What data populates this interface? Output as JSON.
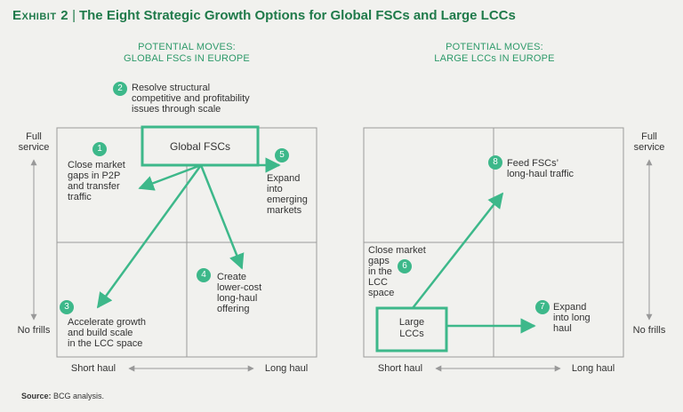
{
  "title": {
    "exhibit": "Exhibit 2",
    "separator": "|",
    "text": "The Eight Strategic Growth Options for Global FSCs and Large LCCs"
  },
  "left_panel": {
    "subtitle_line1": "POTENTIAL MOVES:",
    "subtitle_line2": "GLOBAL FSCs IN EUROPE",
    "box_label": "Global FSCs",
    "y_top_label": "Full service",
    "y_bottom_label": "No frills",
    "x_left_label": "Short haul",
    "x_right_label": "Long haul",
    "options": [
      {
        "number": "1",
        "lines": [
          "Close market",
          "gaps in P2P",
          "and transfer",
          "traffic"
        ]
      },
      {
        "number": "2",
        "lines": [
          "Resolve structural",
          "competitive and profitability",
          "issues through scale"
        ]
      },
      {
        "number": "3",
        "lines": [
          "Accelerate growth",
          "and build scale",
          "in the LCC space"
        ]
      },
      {
        "number": "4",
        "lines": [
          "Create",
          "lower-cost",
          "long-haul",
          "offering"
        ]
      },
      {
        "number": "5",
        "lines": [
          "Expand",
          "into",
          "emerging",
          "markets"
        ]
      }
    ]
  },
  "right_panel": {
    "subtitle_line1": "POTENTIAL MOVES:",
    "subtitle_line2": "LARGE LCCs IN EUROPE",
    "box_label_line1": "Large",
    "box_label_line2": "LCCs",
    "y_top_label": "Full service",
    "y_bottom_label": "No frills",
    "x_left_label": "Short haul",
    "x_right_label": "Long haul",
    "options": [
      {
        "number": "6",
        "lines": [
          "Close market",
          "gaps",
          "in the",
          "LCC",
          "space"
        ]
      },
      {
        "number": "7",
        "lines": [
          "Expand",
          "into long",
          "haul"
        ]
      },
      {
        "number": "8",
        "lines": [
          "Feed FSCs’",
          "long-haul traffic"
        ]
      }
    ]
  },
  "source": {
    "label": "Source:",
    "text": "BCG analysis."
  },
  "colors": {
    "accent": "#2e9a6a",
    "title_green": "#1f7a4a",
    "arrow": "#3db88a",
    "grid": "#9a9a9a"
  }
}
